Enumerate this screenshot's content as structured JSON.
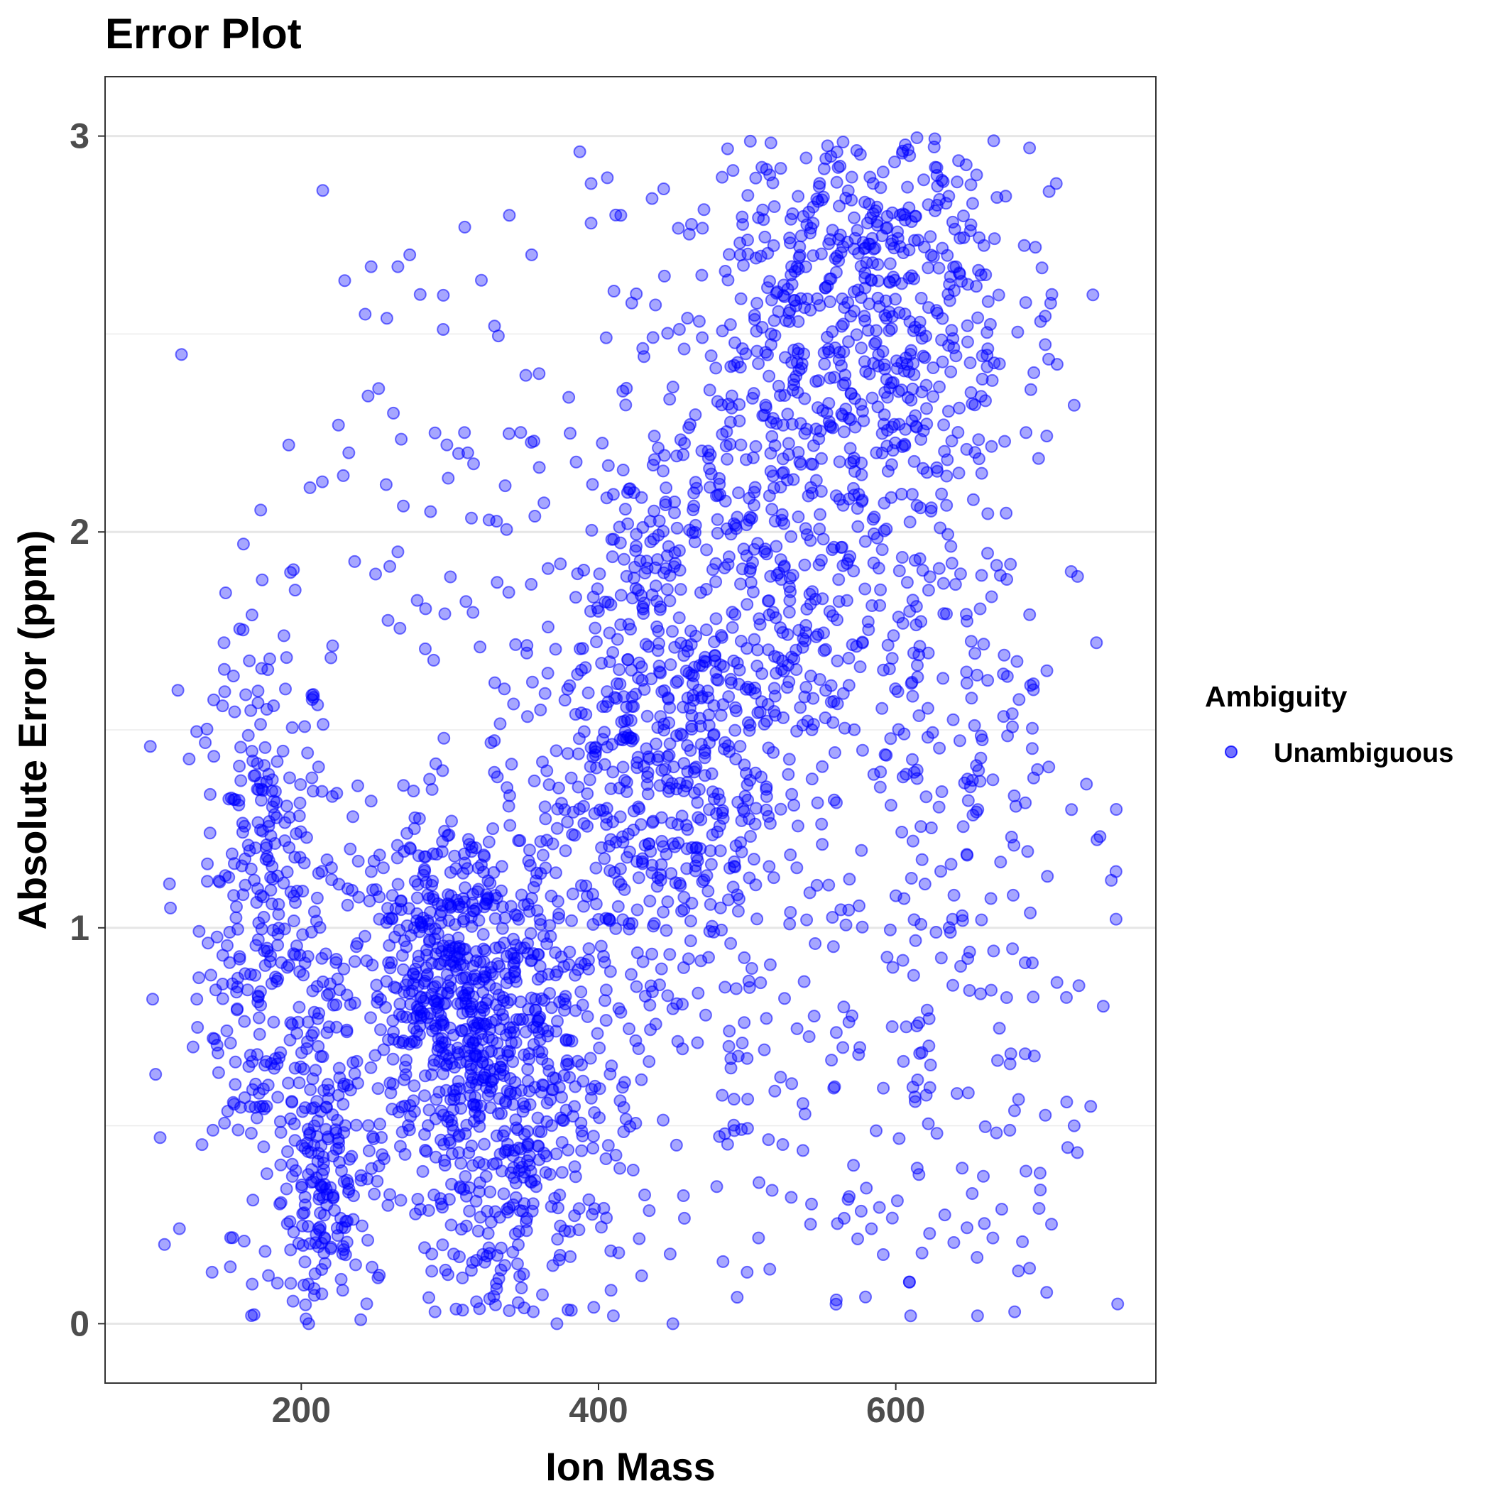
{
  "chart_data": {
    "type": "scatter",
    "title": "Error Plot",
    "xlabel": "Ion Mass",
    "ylabel": "Absolute Error (ppm)",
    "xlim": [
      68,
      775
    ],
    "ylim": [
      -0.15,
      3.15
    ],
    "x_ticks": [
      200,
      400,
      600
    ],
    "y_ticks": [
      0,
      1,
      2,
      3
    ],
    "x_tick_labels": [
      "200",
      "400",
      "600"
    ],
    "y_tick_labels": [
      "0",
      "1",
      "2",
      "3"
    ],
    "grid": true,
    "legend": {
      "title": "Ambiguity",
      "position": "right"
    },
    "series": [
      {
        "name": "Unambiguous",
        "color": "#0000ff",
        "opacity": 0.35,
        "clusters": [
          {
            "x_mean": 175,
            "x_sd": 22,
            "y_mean": 1.02,
            "y_sd": 0.38,
            "n": 300
          },
          {
            "x_mean": 215,
            "x_sd": 14,
            "y_mean": 0.32,
            "y_sd": 0.22,
            "n": 160
          },
          {
            "x_mean": 305,
            "x_sd": 42,
            "y_mean": 0.82,
            "y_sd": 0.24,
            "n": 720
          },
          {
            "x_mean": 345,
            "x_sd": 38,
            "y_mean": 0.38,
            "y_sd": 0.28,
            "n": 260
          },
          {
            "x_mean": 440,
            "x_sd": 42,
            "y_mean": 1.42,
            "y_sd": 0.38,
            "n": 560
          },
          {
            "x_mean": 520,
            "x_sd": 55,
            "y_mean": 2.05,
            "y_sd": 0.4,
            "n": 460
          },
          {
            "x_mean": 585,
            "x_sd": 48,
            "y_mean": 2.6,
            "y_sd": 0.3,
            "n": 420
          },
          {
            "x_mean": 635,
            "x_sd": 50,
            "y_mean": 1.55,
            "y_sd": 0.55,
            "n": 220
          },
          {
            "x_mean": 580,
            "x_sd": 95,
            "y_mean": 0.55,
            "y_sd": 0.42,
            "n": 150
          },
          {
            "x_mean": 300,
            "x_sd": 80,
            "y_mean": 1.85,
            "y_sd": 0.5,
            "n": 100
          }
        ],
        "outliers": [
          [
            745,
            1.12
          ],
          [
            735,
            1.72
          ],
          [
            720,
            2.32
          ],
          [
            718,
            1.9
          ],
          [
            705,
            2.6
          ],
          [
            708,
            2.88
          ],
          [
            690,
            2.97
          ],
          [
            702,
            1.13
          ],
          [
            715,
            0.56
          ],
          [
            720,
            0.5
          ],
          [
            247,
            2.67
          ],
          [
            265,
            2.67
          ],
          [
            273,
            2.7
          ],
          [
            280,
            2.6
          ],
          [
            243,
            2.55
          ],
          [
            310,
            2.77
          ],
          [
            330,
            2.52
          ],
          [
            340,
            2.8
          ],
          [
            355,
            2.7
          ],
          [
            395,
            2.88
          ],
          [
            395,
            2.78
          ],
          [
            415,
            2.8
          ],
          [
            380,
            2.34
          ],
          [
            360,
            2.4
          ],
          [
            225,
            2.27
          ],
          [
            232,
            2.2
          ],
          [
            262,
            2.3
          ],
          [
            290,
            2.25
          ],
          [
            312,
            2.2
          ],
          [
            148,
            1.72
          ],
          [
            117,
            1.6
          ],
          [
            112,
            1.05
          ],
          [
            100,
            0.82
          ],
          [
            102,
            0.63
          ],
          [
            105,
            0.47
          ],
          [
            108,
            0.2
          ],
          [
            118,
            0.24
          ],
          [
            140,
            0.13
          ],
          [
            167,
            0.1
          ],
          [
            205,
            0.0
          ],
          [
            240,
            0.01
          ],
          [
            290,
            0.03
          ],
          [
            350,
            0.04
          ],
          [
            372,
            0.0
          ],
          [
            410,
            0.02
          ],
          [
            450,
            0.0
          ],
          [
            500,
            0.13
          ],
          [
            560,
            0.06
          ],
          [
            610,
            0.02
          ],
          [
            655,
            0.02
          ],
          [
            680,
            0.03
          ],
          [
            690,
            0.14
          ],
          [
            540,
            1.02
          ],
          [
            565,
            0.8
          ],
          [
            575,
            0.68
          ],
          [
            598,
            0.9
          ],
          [
            612,
            0.88
          ],
          [
            500,
            0.67
          ],
          [
            485,
            0.48
          ]
        ]
      }
    ]
  }
}
